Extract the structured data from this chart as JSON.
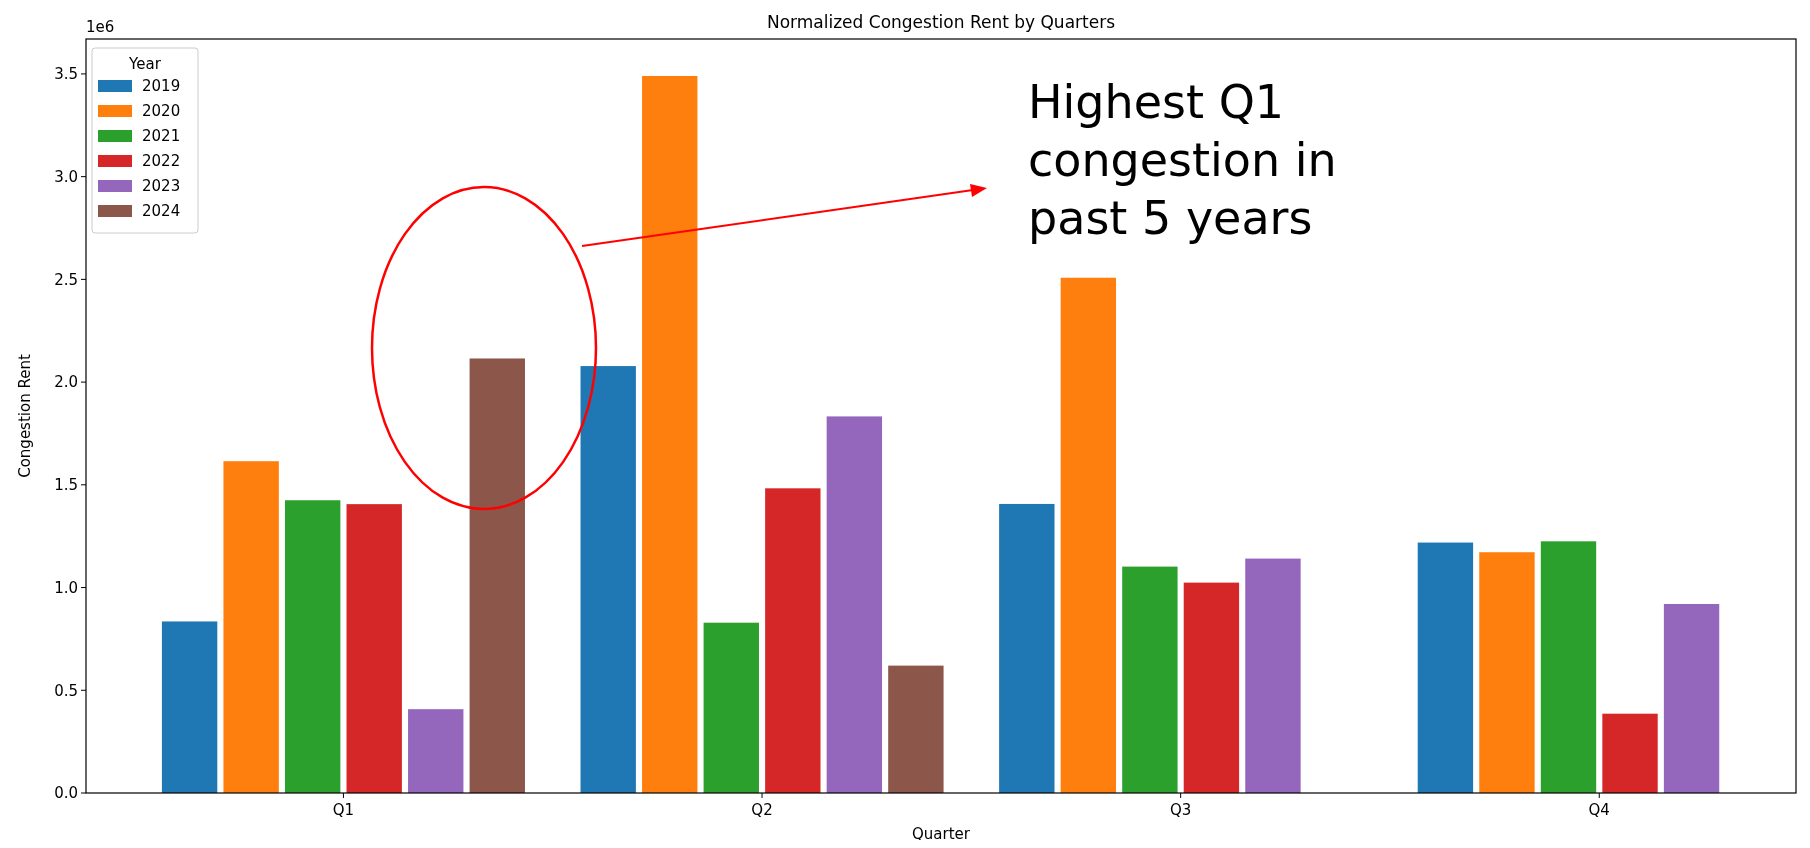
{
  "chart_data": {
    "type": "bar",
    "title": "Normalized Congestion Rent by Quarters",
    "xlabel": "Quarter",
    "ylabel": "Congestion Rent",
    "legend_title": "Year",
    "legend": "top left",
    "categories": [
      "Q1",
      "Q2",
      "Q3",
      "Q4"
    ],
    "series": [
      {
        "name": "2019",
        "color": "#1f77b4",
        "values": [
          0.835,
          2.078,
          1.407,
          1.219
        ]
      },
      {
        "name": "2020",
        "color": "#ff7f0e",
        "values": [
          1.615,
          3.49,
          2.508,
          1.172
        ]
      },
      {
        "name": "2021",
        "color": "#2ca02c",
        "values": [
          1.425,
          0.829,
          1.102,
          1.225
        ]
      },
      {
        "name": "2022",
        "color": "#d62728",
        "values": [
          1.406,
          1.483,
          1.024,
          0.386
        ]
      },
      {
        "name": "2023",
        "color": "#9467bd",
        "values": [
          0.408,
          1.833,
          1.141,
          0.92
        ]
      },
      {
        "name": "2024",
        "color": "#8c564b",
        "values": [
          2.115,
          0.62,
          null,
          null
        ]
      }
    ],
    "ylim": [
      0,
      3.67
    ],
    "yticks": [
      {
        "value": 0,
        "label": "0.0"
      },
      {
        "value": 0.5,
        "label": "0.5"
      },
      {
        "value": 1,
        "label": "1.0"
      },
      {
        "value": 1.5,
        "label": "1.5"
      },
      {
        "value": 2,
        "label": "2.0"
      },
      {
        "value": 2.5,
        "label": "2.5"
      },
      {
        "value": 3,
        "label": "3.0"
      },
      {
        "value": 3.5,
        "label": "3.5"
      }
    ],
    "annotations": [
      "1e6",
      "Highest Q1 congestion in past 5 years"
    ],
    "grid": false
  }
}
